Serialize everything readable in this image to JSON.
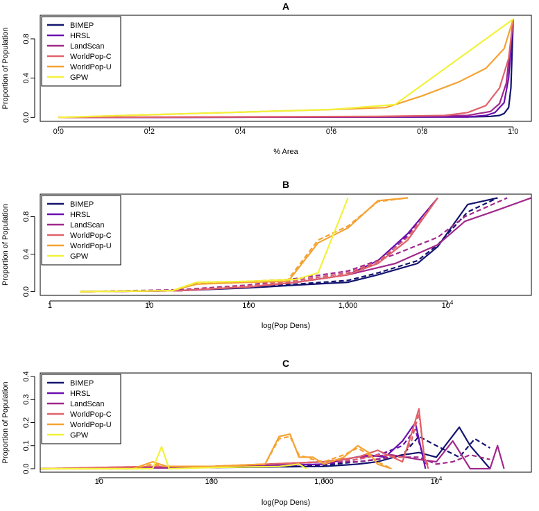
{
  "palette": {
    "BIMEP": "#13136f",
    "HRSL": "#6a0fb0",
    "LandScan": "#a0288c",
    "WorldPop-C": "#e0626a",
    "WorldPop-U": "#f5a233",
    "GPW": "#f2f23a"
  },
  "chart_data": [
    {
      "panel": "A",
      "type": "line",
      "title": "A",
      "xlabel": "% Area",
      "ylabel": "Proportion of Population",
      "xscale": "linear",
      "xlim": [
        -0.04,
        1.04
      ],
      "ylim": [
        -0.04,
        1.04
      ],
      "xticks": [
        0,
        0.2,
        0.4,
        0.6,
        0.8,
        1.0
      ],
      "xtick_labels": [
        "0.0",
        "0.2",
        "0.4",
        "0.6",
        "0.8",
        "1.0"
      ],
      "yticks": [
        0,
        0.4,
        0.8
      ],
      "ytick_labels": [
        "0.0",
        "0.4",
        "0.8"
      ],
      "legend": [
        "BIMEP",
        "HRSL",
        "LandScan",
        "WorldPop-C",
        "WorldPop-U",
        "GPW"
      ],
      "series": [
        {
          "name": "BIMEP",
          "style": "solid",
          "x": [
            0,
            0.9,
            0.95,
            0.97,
            0.98,
            0.99,
            0.995,
            1.0
          ],
          "y": [
            0,
            0.005,
            0.01,
            0.02,
            0.04,
            0.1,
            0.3,
            1.0
          ]
        },
        {
          "name": "HRSL",
          "style": "solid",
          "x": [
            0,
            0.9,
            0.94,
            0.96,
            0.98,
            0.99,
            1.0
          ],
          "y": [
            0,
            0.005,
            0.02,
            0.05,
            0.15,
            0.4,
            1.0
          ]
        },
        {
          "name": "LandScan",
          "style": "solid",
          "x": [
            0,
            0.7,
            0.9,
            0.95,
            0.97,
            0.985,
            1.0
          ],
          "y": [
            0,
            0.005,
            0.02,
            0.06,
            0.14,
            0.35,
            1.0
          ]
        },
        {
          "name": "WorldPop-C",
          "style": "solid",
          "x": [
            0,
            0.7,
            0.85,
            0.9,
            0.94,
            0.97,
            0.99,
            1.0
          ],
          "y": [
            0,
            0.01,
            0.02,
            0.05,
            0.12,
            0.3,
            0.6,
            1.0
          ]
        },
        {
          "name": "WorldPop-U",
          "style": "solid",
          "x": [
            0,
            0.6,
            0.72,
            0.8,
            0.88,
            0.94,
            0.98,
            1.0
          ],
          "y": [
            0,
            0.08,
            0.1,
            0.22,
            0.36,
            0.5,
            0.7,
            1.0
          ]
        },
        {
          "name": "GPW",
          "style": "solid",
          "x": [
            0,
            0.6,
            0.74,
            1.0
          ],
          "y": [
            0,
            0.08,
            0.13,
            1.0
          ]
        }
      ]
    },
    {
      "panel": "B",
      "type": "line",
      "title": "B",
      "xlabel": "log(Pop Dens)",
      "ylabel": "Proportion of Population",
      "xscale": "log",
      "xlim": [
        0.8,
        70000
      ],
      "ylim": [
        -0.04,
        1.04
      ],
      "xticks": [
        1,
        10,
        100,
        1000,
        10000
      ],
      "xtick_labels": [
        "1",
        "10",
        "100",
        "1,000",
        "10^4"
      ],
      "yticks": [
        0,
        0.4,
        0.8
      ],
      "ytick_labels": [
        "0.0",
        "0.4",
        "0.8"
      ],
      "legend": [
        "BIMEP",
        "HRSL",
        "LandScan",
        "WorldPop-C",
        "WorldPop-U",
        "GPW"
      ],
      "series": [
        {
          "name": "BIMEP",
          "style": "solid",
          "x": [
            2,
            20,
            100,
            300,
            1000,
            2000,
            5000,
            8000,
            16000,
            32000
          ],
          "y": [
            0,
            0.01,
            0.04,
            0.07,
            0.1,
            0.18,
            0.3,
            0.48,
            0.93,
            1.0
          ]
        },
        {
          "name": "BIMEP",
          "style": "dashed",
          "x": [
            2,
            20,
            100,
            300,
            1000,
            2000,
            5000,
            8000,
            16000,
            32000
          ],
          "y": [
            0,
            0.01,
            0.05,
            0.08,
            0.12,
            0.2,
            0.33,
            0.5,
            0.85,
            1.0
          ]
        },
        {
          "name": "HRSL",
          "style": "solid",
          "x": [
            2,
            20,
            100,
            300,
            1000,
            2000,
            4000,
            8000
          ],
          "y": [
            0,
            0.01,
            0.05,
            0.1,
            0.18,
            0.33,
            0.62,
            1.0
          ]
        },
        {
          "name": "HRSL",
          "style": "dashed",
          "x": [
            2,
            20,
            100,
            300,
            1000,
            2000,
            4000,
            8000
          ],
          "y": [
            0,
            0.01,
            0.06,
            0.12,
            0.2,
            0.3,
            0.6,
            1.0
          ]
        },
        {
          "name": "LandScan",
          "style": "solid",
          "x": [
            2,
            20,
            100,
            300,
            1000,
            3000,
            8000,
            15000,
            30000,
            70000
          ],
          "y": [
            0,
            0.01,
            0.05,
            0.1,
            0.18,
            0.3,
            0.5,
            0.75,
            0.86,
            1.0
          ]
        },
        {
          "name": "LandScan",
          "style": "dashed",
          "x": [
            2,
            20,
            100,
            300,
            1000,
            3000,
            8000,
            15000,
            40000
          ],
          "y": [
            0,
            0.02,
            0.07,
            0.14,
            0.22,
            0.4,
            0.58,
            0.8,
            1.0
          ]
        },
        {
          "name": "WorldPop-C",
          "style": "solid",
          "x": [
            2,
            20,
            100,
            300,
            1000,
            2000,
            4000,
            8000
          ],
          "y": [
            0,
            0.01,
            0.05,
            0.1,
            0.18,
            0.3,
            0.55,
            1.0
          ]
        },
        {
          "name": "WorldPop-C",
          "style": "dashed",
          "x": [
            2,
            20,
            100,
            300,
            1000,
            2000,
            4000,
            8000
          ],
          "y": [
            0,
            0.01,
            0.06,
            0.12,
            0.2,
            0.32,
            0.58,
            1.0
          ]
        },
        {
          "name": "WorldPop-U",
          "style": "solid",
          "x": [
            2,
            17,
            30,
            100,
            250,
            500,
            1000,
            2000,
            4000
          ],
          "y": [
            0,
            0.01,
            0.08,
            0.1,
            0.11,
            0.52,
            0.68,
            0.97,
            1.0
          ]
        },
        {
          "name": "WorldPop-U",
          "style": "dashed",
          "x": [
            2,
            17,
            30,
            100,
            250,
            500,
            1000,
            2000,
            4000
          ],
          "y": [
            0,
            0.01,
            0.09,
            0.11,
            0.13,
            0.55,
            0.7,
            0.96,
            1.0
          ]
        },
        {
          "name": "GPW",
          "style": "solid",
          "x": [
            2,
            17,
            30,
            100,
            300,
            500,
            1000
          ],
          "y": [
            0,
            0.01,
            0.1,
            0.11,
            0.13,
            0.2,
            1.0
          ]
        }
      ]
    },
    {
      "panel": "C",
      "type": "line",
      "title": "C",
      "xlabel": "log(Pop Dens)",
      "ylabel": "Proportion of Population",
      "xscale": "log",
      "xlim": [
        3,
        70000
      ],
      "ylim": [
        -0.015,
        0.415
      ],
      "xticks": [
        10,
        100,
        1000,
        10000
      ],
      "xtick_labels": [
        "10",
        "100",
        "1,000",
        "10^4"
      ],
      "yticks": [
        0,
        0.1,
        0.2,
        0.3,
        0.4
      ],
      "ytick_labels": [
        "0.0",
        "0.1",
        "0.2",
        "0.3",
        "0.4"
      ],
      "legend": [
        "BIMEP",
        "HRSL",
        "LandScan",
        "WorldPop-C",
        "WorldPop-U",
        "GPW"
      ],
      "series": [
        {
          "name": "BIMEP",
          "style": "solid",
          "x": [
            3,
            100,
            1000,
            2000,
            3000,
            5000,
            7000,
            10000,
            16000,
            20000,
            30000
          ],
          "y": [
            0,
            0.005,
            0.01,
            0.02,
            0.03,
            0.06,
            0.07,
            0.05,
            0.18,
            0.1,
            0
          ]
        },
        {
          "name": "BIMEP",
          "style": "dashed",
          "x": [
            3,
            100,
            1000,
            2000,
            3000,
            5000,
            7000,
            10000,
            16000,
            22000,
            30000
          ],
          "y": [
            0,
            0.005,
            0.015,
            0.03,
            0.04,
            0.06,
            0.14,
            0.1,
            0.05,
            0.13,
            0.09
          ]
        },
        {
          "name": "HRSL",
          "style": "solid",
          "x": [
            3,
            100,
            1000,
            1500,
            2500,
            3500,
            5000,
            6500,
            8000
          ],
          "y": [
            0,
            0.005,
            0.02,
            0.04,
            0.06,
            0.05,
            0.12,
            0.2,
            0
          ]
        },
        {
          "name": "HRSL",
          "style": "dashed",
          "x": [
            3,
            100,
            1000,
            1500,
            2500,
            3500,
            5000,
            6500,
            8000
          ],
          "y": [
            0,
            0.005,
            0.02,
            0.03,
            0.05,
            0.07,
            0.1,
            0.17,
            0.02
          ]
        },
        {
          "name": "LandScan",
          "style": "solid",
          "x": [
            3,
            100,
            1000,
            2000,
            4000,
            7000,
            10000,
            14000,
            20000,
            30000,
            35000,
            40000
          ],
          "y": [
            0,
            0.005,
            0.03,
            0.05,
            0.06,
            0.04,
            0.03,
            0.12,
            0,
            0,
            0.1,
            0
          ]
        },
        {
          "name": "LandScan",
          "style": "dashed",
          "x": [
            3,
            100,
            1000,
            2000,
            4000,
            7000,
            10000,
            14000,
            20000,
            30000
          ],
          "y": [
            0,
            0.005,
            0.03,
            0.03,
            0.05,
            0.05,
            0.02,
            0.03,
            0.06,
            0.04
          ]
        },
        {
          "name": "WorldPop-C",
          "style": "solid",
          "x": [
            3,
            30,
            100,
            1000,
            2000,
            3000,
            5000,
            6000,
            7000,
            7800,
            8500
          ],
          "y": [
            0,
            0.01,
            0.01,
            0.03,
            0.05,
            0.08,
            0.03,
            0.15,
            0.26,
            0.05,
            0
          ]
        },
        {
          "name": "WorldPop-C",
          "style": "dashed",
          "x": [
            3,
            30,
            100,
            1000,
            2000,
            3000,
            5000,
            6000,
            7000,
            7800,
            8500
          ],
          "y": [
            0,
            0.01,
            0.01,
            0.03,
            0.04,
            0.06,
            0.05,
            0.12,
            0.24,
            0.06,
            0.01
          ]
        },
        {
          "name": "WorldPop-U",
          "style": "solid",
          "x": [
            3,
            20,
            30,
            40,
            100,
            300,
            400,
            500,
            600,
            800,
            1000,
            1500,
            2000,
            2500,
            3000,
            4000
          ],
          "y": [
            0,
            0,
            0.03,
            0.01,
            0.01,
            0.02,
            0.14,
            0.15,
            0.05,
            0.05,
            0.02,
            0.05,
            0.1,
            0.07,
            0.02,
            0
          ]
        },
        {
          "name": "WorldPop-U",
          "style": "dashed",
          "x": [
            3,
            20,
            30,
            40,
            100,
            300,
            400,
            500,
            600,
            800,
            1000,
            1500,
            2000,
            2500,
            3000,
            4000
          ],
          "y": [
            0,
            0,
            0.02,
            0.01,
            0.01,
            0.02,
            0.13,
            0.14,
            0.06,
            0.04,
            0.03,
            0.06,
            0.09,
            0.06,
            0.03,
            0
          ]
        },
        {
          "name": "GPW",
          "style": "solid",
          "x": [
            3,
            30,
            36,
            42,
            100,
            400,
            600,
            700
          ],
          "y": [
            0,
            0,
            0.095,
            0,
            0.005,
            0.01,
            0.02,
            0
          ]
        }
      ]
    }
  ]
}
